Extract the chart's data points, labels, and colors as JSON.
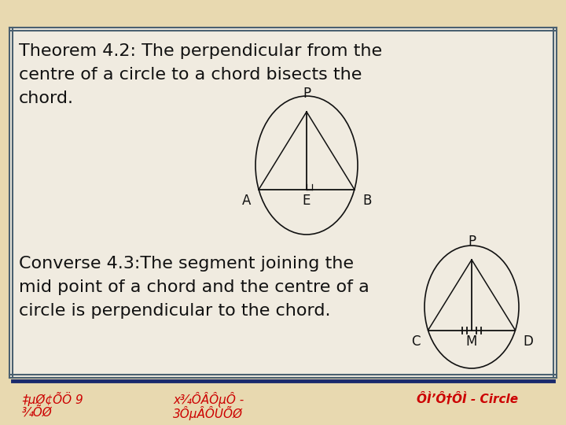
{
  "bg_outer": "#e8d9b0",
  "bg_inner": "#f0ebe0",
  "border_color": "#4a6070",
  "border_color2": "#1a2a6c",
  "text_color": "#111111",
  "line_color": "#111111",
  "footer_text_color": "#cc0000",
  "footer_bg": "#e8d9b0",
  "theorem_text_line1": "Theorem 4.2: The perpendicular from the",
  "theorem_text_line2": "centre of a circle to a chord bisects the",
  "theorem_text_line3": "chord.",
  "converse_text_line1": "Converse 4.3:The segment joining the",
  "converse_text_line2": "mid point of a chord and the centre of a",
  "converse_text_line3": "circle is perpendicular to the chord.",
  "footer_left1": "‡μØ¢ÕÖ 9",
  "footer_left2": "¾ÕØ",
  "footer_mid1": "x¾ÔÂÔµÔ -",
  "footer_mid2": "3ÔµÂÔÙÕØ",
  "footer_right": "ÔÌ’Ô†ÔÌ - Circle"
}
